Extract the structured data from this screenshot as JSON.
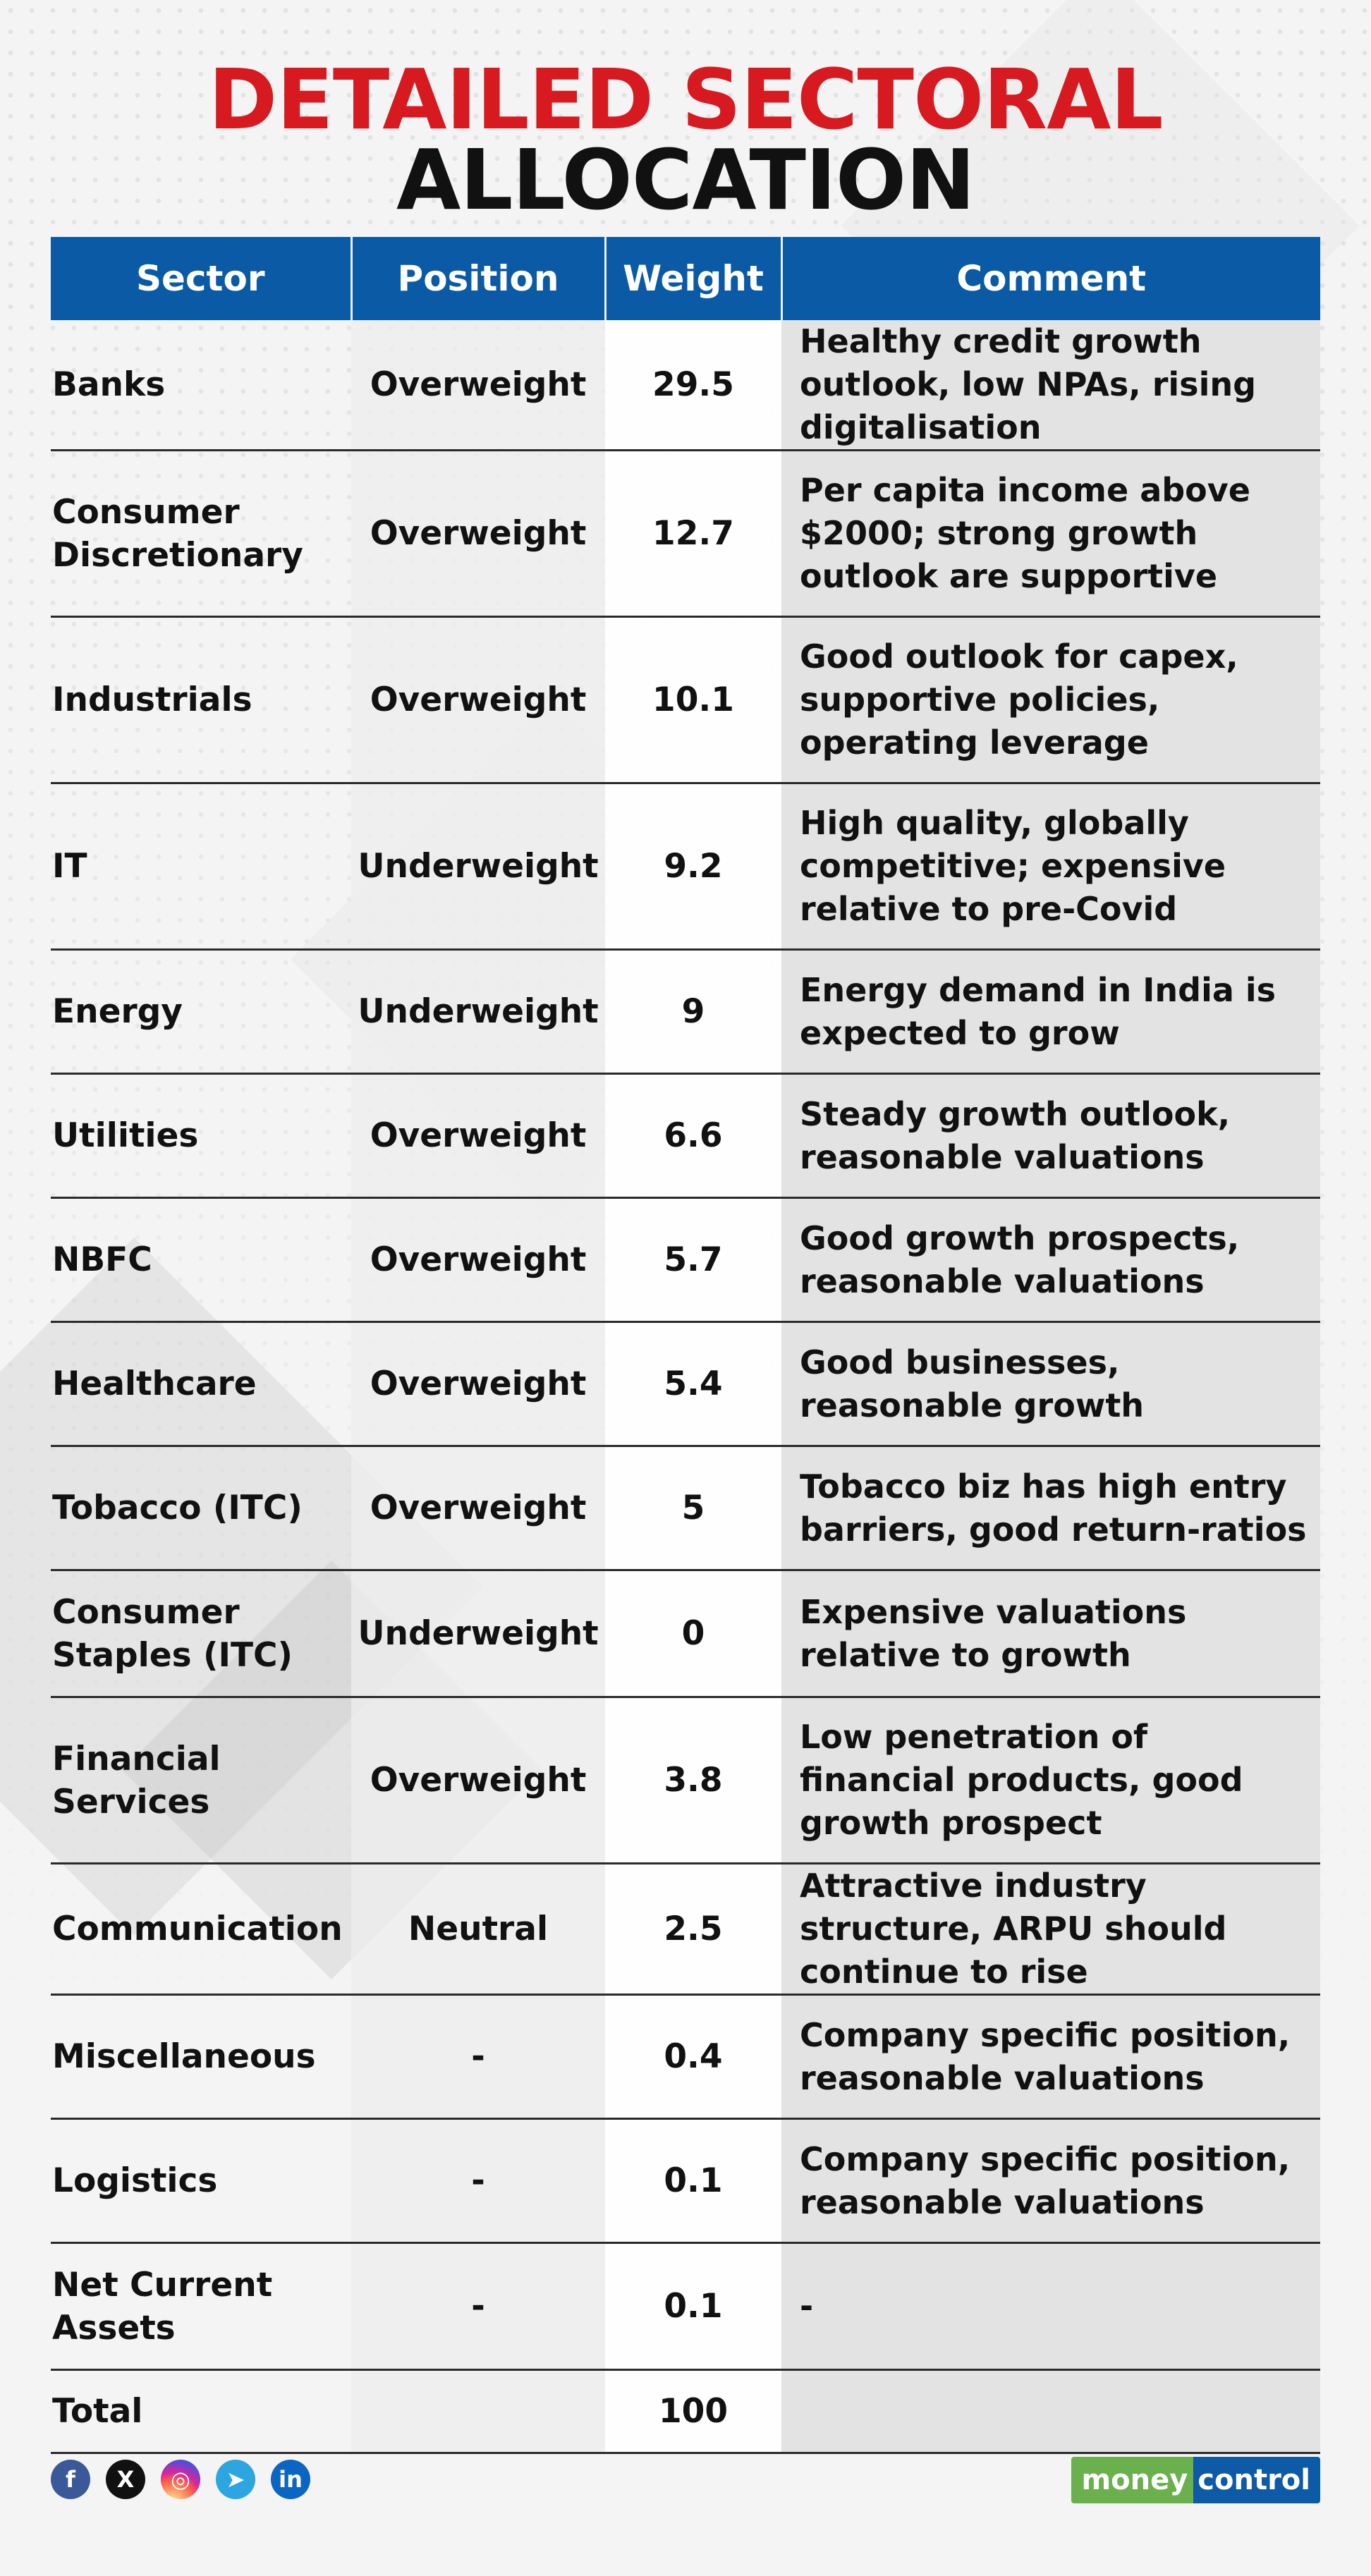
{
  "title": {
    "line1": "DETAILED SECTORAL",
    "line2": "ALLOCATION"
  },
  "colors": {
    "title_red": "#d71920",
    "header_blue": "#0a5aa6",
    "comment_bg": "#e3e3e3"
  },
  "table": {
    "headers": [
      "Sector",
      "Position",
      "Weight",
      "Comment"
    ],
    "rows": [
      {
        "sector": "Banks",
        "position": "Overweight",
        "weight": "29.5",
        "comment": "Healthy credit growth outlook, low NPAs, rising digitalisation"
      },
      {
        "sector": "Consumer Discretionary",
        "position": "Overweight",
        "weight": "12.7",
        "comment": "Per capita income above $2000; strong growth outlook are supportive"
      },
      {
        "sector": "Industrials",
        "position": "Overweight",
        "weight": "10.1",
        "comment": "Good outlook for capex, supportive policies, operating leverage"
      },
      {
        "sector": "IT",
        "position": "Underweight",
        "weight": "9.2",
        "comment": "High quality, globally competitive; expensive relative to pre-Covid"
      },
      {
        "sector": "Energy",
        "position": "Underweight",
        "weight": "9",
        "comment": "Energy demand in India is expected to grow"
      },
      {
        "sector": "Utilities",
        "position": "Overweight",
        "weight": "6.6",
        "comment": "Steady growth outlook, reasonable valuations"
      },
      {
        "sector": "NBFC",
        "position": "Overweight",
        "weight": "5.7",
        "comment": "Good growth prospects, reasonable valuations"
      },
      {
        "sector": "Healthcare",
        "position": "Overweight",
        "weight": "5.4",
        "comment": "Good businesses, reasonable growth"
      },
      {
        "sector": "Tobacco (ITC)",
        "position": "Overweight",
        "weight": "5",
        "comment": "Tobacco biz has high entry barriers, good return-ratios"
      },
      {
        "sector": "Consumer Staples (ITC)",
        "position": "Underweight",
        "weight": "0",
        "comment": "Expensive valuations relative to growth"
      },
      {
        "sector": "Financial Services",
        "position": "Overweight",
        "weight": "3.8",
        "comment": "Low penetration of financial products, good growth prospect"
      },
      {
        "sector": "Communication",
        "position": "Neutral",
        "weight": "2.5",
        "comment": "Attractive industry structure, ARPU should continue to rise"
      },
      {
        "sector": "Miscellaneous",
        "position": "-",
        "weight": "0.4",
        "comment": "Company specific position, reasonable valuations"
      },
      {
        "sector": "Logistics",
        "position": "-",
        "weight": "0.1",
        "comment": "Company specific position, reasonable valuations"
      },
      {
        "sector": "Net Current Assets",
        "position": "-",
        "weight": "0.1",
        "comment": "-"
      }
    ],
    "total": {
      "sector": "Total",
      "position": "",
      "weight": "100",
      "comment": ""
    }
  },
  "footer": {
    "social": [
      {
        "name": "facebook-icon",
        "glyph": "f"
      },
      {
        "name": "x-twitter-icon",
        "glyph": "X"
      },
      {
        "name": "instagram-icon",
        "glyph": "◎"
      },
      {
        "name": "telegram-icon",
        "glyph": "➤"
      },
      {
        "name": "linkedin-icon",
        "glyph": "in"
      }
    ],
    "logo": {
      "part1": "money",
      "part2": "control"
    }
  }
}
